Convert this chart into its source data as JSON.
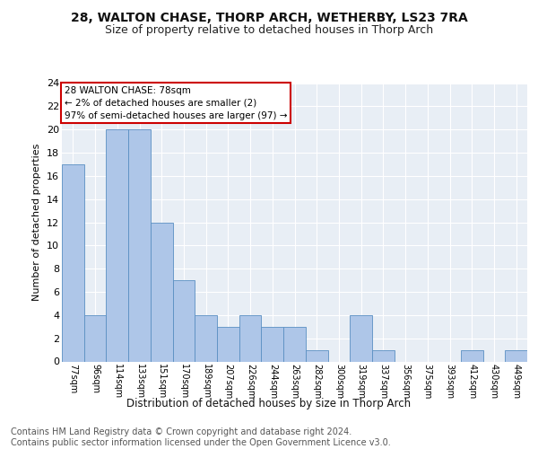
{
  "title1": "28, WALTON CHASE, THORP ARCH, WETHERBY, LS23 7RA",
  "title2": "Size of property relative to detached houses in Thorp Arch",
  "xlabel": "Distribution of detached houses by size in Thorp Arch",
  "ylabel": "Number of detached properties",
  "categories": [
    "77sqm",
    "96sqm",
    "114sqm",
    "133sqm",
    "151sqm",
    "170sqm",
    "189sqm",
    "207sqm",
    "226sqm",
    "244sqm",
    "263sqm",
    "282sqm",
    "300sqm",
    "319sqm",
    "337sqm",
    "356sqm",
    "375sqm",
    "393sqm",
    "412sqm",
    "430sqm",
    "449sqm"
  ],
  "values": [
    17,
    4,
    20,
    20,
    12,
    7,
    4,
    3,
    4,
    3,
    3,
    1,
    0,
    4,
    1,
    0,
    0,
    0,
    1,
    0,
    1
  ],
  "bar_color": "#aec6e8",
  "bar_edge_color": "#5a8fc2",
  "annotation_box_color": "#cc0000",
  "annotation_text": "28 WALTON CHASE: 78sqm\n← 2% of detached houses are smaller (2)\n97% of semi-detached houses are larger (97) →",
  "background_color": "#e8eef5",
  "grid_color": "#ffffff",
  "ylim": [
    0,
    24
  ],
  "yticks": [
    0,
    2,
    4,
    6,
    8,
    10,
    12,
    14,
    16,
    18,
    20,
    22,
    24
  ],
  "footer_text": "Contains HM Land Registry data © Crown copyright and database right 2024.\nContains public sector information licensed under the Open Government Licence v3.0.",
  "title_fontsize": 10,
  "subtitle_fontsize": 9,
  "annotation_fontsize": 7.5,
  "footer_fontsize": 7,
  "ylabel_fontsize": 8,
  "xlabel_fontsize": 8.5,
  "xtick_fontsize": 7,
  "ytick_fontsize": 8
}
